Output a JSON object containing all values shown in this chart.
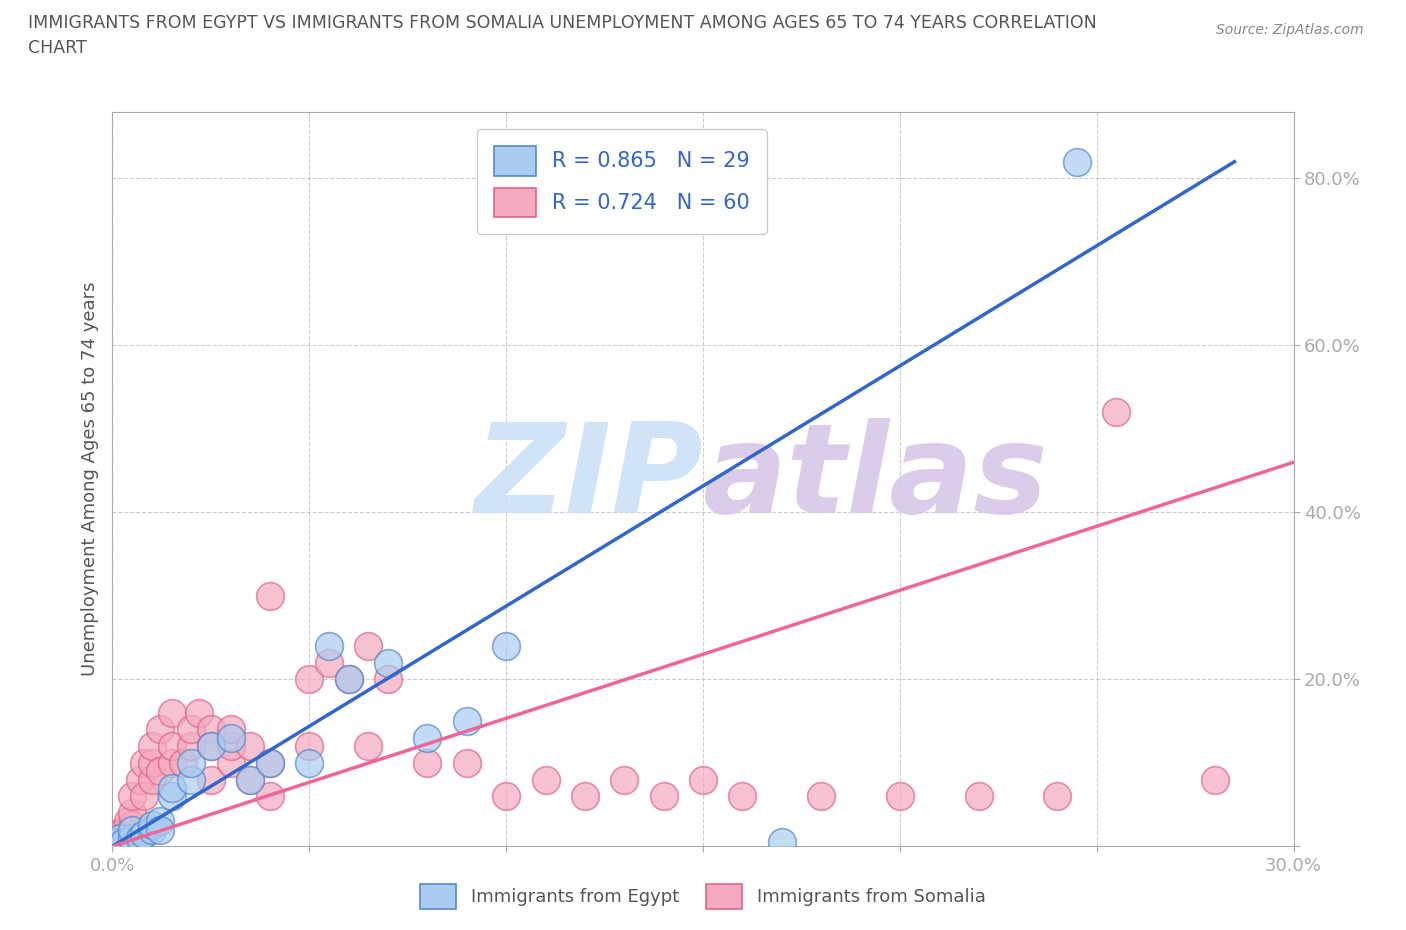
{
  "title_line1": "IMMIGRANTS FROM EGYPT VS IMMIGRANTS FROM SOMALIA UNEMPLOYMENT AMONG AGES 65 TO 74 YEARS CORRELATION",
  "title_line2": "CHART",
  "source_text": "Source: ZipAtlas.com",
  "ylabel_text": "Unemployment Among Ages 65 to 74 years",
  "xlim": [
    0.0,
    0.3
  ],
  "ylim": [
    0.0,
    0.88
  ],
  "x_ticks": [
    0.0,
    0.05,
    0.1,
    0.15,
    0.2,
    0.25,
    0.3
  ],
  "y_ticks": [
    0.0,
    0.2,
    0.4,
    0.6,
    0.8
  ],
  "egypt_color": "#aaccf0",
  "egypt_edge_color": "#5588cc",
  "somalia_color": "#f5aac0",
  "somalia_edge_color": "#dd6688",
  "egypt_line_color": "#3366cc",
  "somalia_line_color": "#ee6699",
  "legend_r_color": "#3366cc",
  "watermark_color": "#cce0f5",
  "egypt_R": 0.865,
  "egypt_N": 29,
  "somalia_R": 0.724,
  "somalia_N": 60,
  "egypt_line_x0": 0.0,
  "egypt_line_y0": 0.0,
  "egypt_line_x1": 0.285,
  "egypt_line_y1": 0.82,
  "somalia_line_x0": 0.0,
  "somalia_line_y0": 0.0,
  "somalia_line_x1": 0.3,
  "somalia_line_y1": 0.46,
  "egypt_scatter": [
    [
      0.0,
      0.0
    ],
    [
      0.0,
      0.005
    ],
    [
      0.002,
      0.01
    ],
    [
      0.003,
      0.005
    ],
    [
      0.005,
      0.01
    ],
    [
      0.005,
      0.02
    ],
    [
      0.007,
      0.01
    ],
    [
      0.008,
      0.015
    ],
    [
      0.01,
      0.02
    ],
    [
      0.01,
      0.025
    ],
    [
      0.012,
      0.03
    ],
    [
      0.012,
      0.02
    ],
    [
      0.015,
      0.06
    ],
    [
      0.015,
      0.07
    ],
    [
      0.02,
      0.08
    ],
    [
      0.02,
      0.1
    ],
    [
      0.025,
      0.12
    ],
    [
      0.03,
      0.13
    ],
    [
      0.035,
      0.08
    ],
    [
      0.04,
      0.1
    ],
    [
      0.05,
      0.1
    ],
    [
      0.055,
      0.24
    ],
    [
      0.06,
      0.2
    ],
    [
      0.07,
      0.22
    ],
    [
      0.08,
      0.13
    ],
    [
      0.09,
      0.15
    ],
    [
      0.1,
      0.24
    ],
    [
      0.17,
      0.005
    ],
    [
      0.245,
      0.82
    ]
  ],
  "somalia_scatter": [
    [
      0.0,
      0.0
    ],
    [
      0.0,
      0.005
    ],
    [
      0.0,
      0.01
    ],
    [
      0.0,
      0.015
    ],
    [
      0.002,
      0.01
    ],
    [
      0.003,
      0.005
    ],
    [
      0.003,
      0.02
    ],
    [
      0.004,
      0.03
    ],
    [
      0.005,
      0.01
    ],
    [
      0.005,
      0.025
    ],
    [
      0.005,
      0.04
    ],
    [
      0.005,
      0.06
    ],
    [
      0.007,
      0.08
    ],
    [
      0.008,
      0.06
    ],
    [
      0.008,
      0.1
    ],
    [
      0.01,
      0.08
    ],
    [
      0.01,
      0.1
    ],
    [
      0.01,
      0.12
    ],
    [
      0.012,
      0.09
    ],
    [
      0.012,
      0.14
    ],
    [
      0.015,
      0.1
    ],
    [
      0.015,
      0.12
    ],
    [
      0.015,
      0.16
    ],
    [
      0.018,
      0.1
    ],
    [
      0.02,
      0.12
    ],
    [
      0.02,
      0.14
    ],
    [
      0.022,
      0.16
    ],
    [
      0.025,
      0.14
    ],
    [
      0.025,
      0.12
    ],
    [
      0.025,
      0.08
    ],
    [
      0.03,
      0.1
    ],
    [
      0.03,
      0.12
    ],
    [
      0.03,
      0.14
    ],
    [
      0.035,
      0.08
    ],
    [
      0.035,
      0.12
    ],
    [
      0.04,
      0.06
    ],
    [
      0.04,
      0.1
    ],
    [
      0.04,
      0.3
    ],
    [
      0.05,
      0.12
    ],
    [
      0.05,
      0.2
    ],
    [
      0.055,
      0.22
    ],
    [
      0.06,
      0.2
    ],
    [
      0.065,
      0.24
    ],
    [
      0.065,
      0.12
    ],
    [
      0.07,
      0.2
    ],
    [
      0.08,
      0.1
    ],
    [
      0.09,
      0.1
    ],
    [
      0.1,
      0.06
    ],
    [
      0.11,
      0.08
    ],
    [
      0.12,
      0.06
    ],
    [
      0.13,
      0.08
    ],
    [
      0.14,
      0.06
    ],
    [
      0.15,
      0.08
    ],
    [
      0.16,
      0.06
    ],
    [
      0.18,
      0.06
    ],
    [
      0.2,
      0.06
    ],
    [
      0.22,
      0.06
    ],
    [
      0.24,
      0.06
    ],
    [
      0.255,
      0.52
    ],
    [
      0.28,
      0.08
    ]
  ],
  "background_color": "#ffffff",
  "grid_color": "#cccccc",
  "title_color": "#555555",
  "axis_color": "#aaaaaa",
  "tick_label_color": "#3366cc",
  "ylabel_color": "#555555"
}
